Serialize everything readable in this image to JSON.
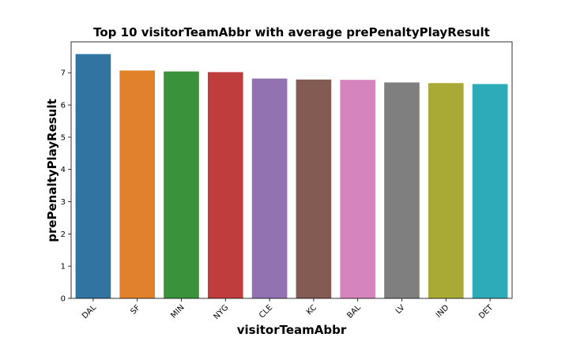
{
  "chart_data": {
    "type": "bar",
    "title": "Top 10 visitorTeamAbbr with average prePenaltyPlayResult",
    "xlabel": "visitorTeamAbbr",
    "ylabel": "prePenaltyPlayResult",
    "categories": [
      "DAL",
      "SF",
      "MIN",
      "NYG",
      "CLE",
      "KC",
      "BAL",
      "LV",
      "IND",
      "DET"
    ],
    "values": [
      7.58,
      7.07,
      7.04,
      7.02,
      6.82,
      6.79,
      6.78,
      6.7,
      6.68,
      6.65
    ],
    "colors": [
      "#3274a1",
      "#e1812c",
      "#3a923a",
      "#c03d3e",
      "#9372b2",
      "#845b53",
      "#d684bd",
      "#7f7f7f",
      "#a9aa35",
      "#2eabb8"
    ],
    "ylim": [
      0,
      7.96
    ],
    "yticks": [
      "0",
      "1",
      "2",
      "3",
      "4",
      "5",
      "6",
      "7"
    ],
    "grid": false,
    "legend": "none"
  }
}
